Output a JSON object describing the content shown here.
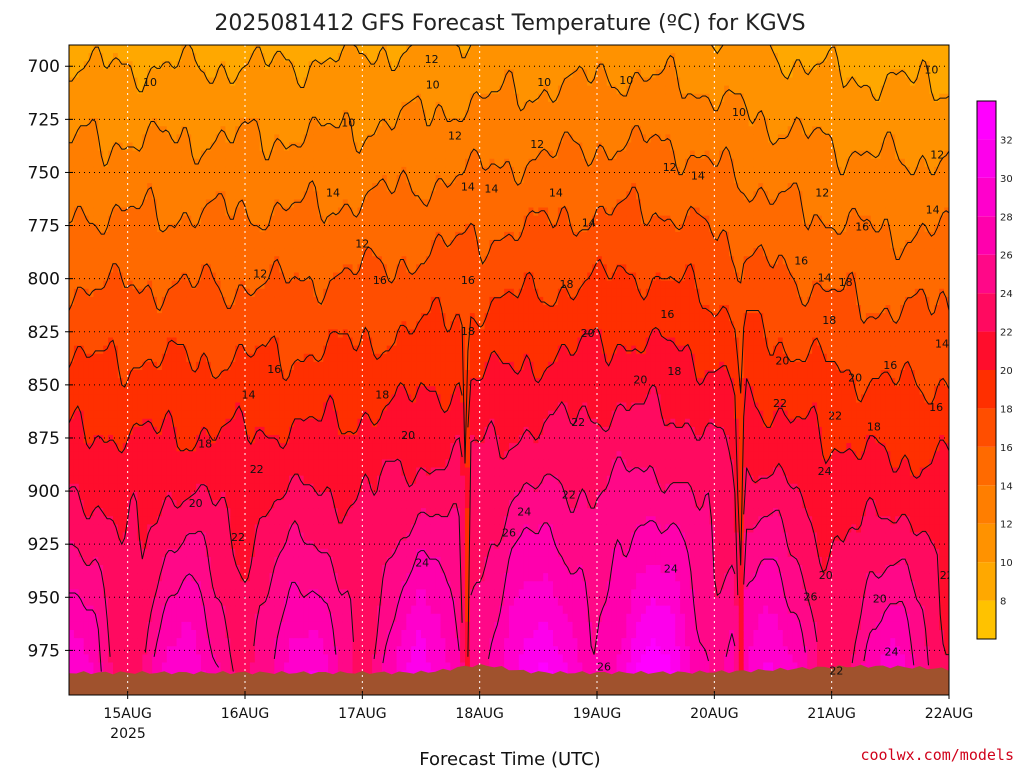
{
  "chart_data": {
    "type": "heatmap",
    "title": "2025081412 GFS Forecast Temperature (ºC) for KGVS",
    "xlabel": "Forecast Time (UTC)",
    "ylabel": "",
    "x_tick_labels": [
      "15AUG",
      "16AUG",
      "17AUG",
      "18AUG",
      "19AUG",
      "20AUG",
      "21AUG",
      "22AUG"
    ],
    "x_year_label": "2025",
    "x_range": [
      "14AUG 12Z",
      "22AUG 00Z"
    ],
    "y_tick_labels": [
      "700",
      "725",
      "750",
      "775",
      "800",
      "825",
      "850",
      "875",
      "900",
      "925",
      "950",
      "975"
    ],
    "y_range": [
      690,
      996
    ],
    "y_reversed": true,
    "grid": true,
    "colorbar": {
      "levels": [
        8,
        10,
        12,
        14,
        16,
        18,
        20,
        22,
        24,
        26,
        28,
        30,
        32
      ],
      "colors": [
        "#ffc200",
        "#ffa800",
        "#ff9200",
        "#ff7e00",
        "#ff6a00",
        "#ff4e00",
        "#ff2f00",
        "#ff0d2c",
        "#ff0a60",
        "#ff0888",
        "#ff00ad",
        "#ff00cc",
        "#fd00eb",
        "#ff00ff"
      ],
      "position": "right"
    },
    "contour_levels": [
      10,
      12,
      14,
      16,
      18,
      20,
      22,
      24,
      26
    ],
    "contour_labels": [
      {
        "t": 0.19,
        "p": 708,
        "v": "10"
      },
      {
        "t": 1.13,
        "p": 798,
        "v": "12"
      },
      {
        "t": 1.03,
        "p": 855,
        "v": "14"
      },
      {
        "t": 0.58,
        "p": 906,
        "v": "20"
      },
      {
        "t": 0.66,
        "p": 878,
        "v": "18"
      },
      {
        "t": 0.94,
        "p": 922,
        "v": "22"
      },
      {
        "t": 1.1,
        "p": 890,
        "v": "22"
      },
      {
        "t": 1.25,
        "p": 843,
        "v": "16"
      },
      {
        "t": 1.75,
        "p": 760,
        "v": "14"
      },
      {
        "t": 2.0,
        "p": 784,
        "v": "12"
      },
      {
        "t": 1.88,
        "p": 727,
        "v": "10"
      },
      {
        "t": 2.15,
        "p": 801,
        "v": "16"
      },
      {
        "t": 2.17,
        "p": 855,
        "v": "18"
      },
      {
        "t": 2.39,
        "p": 874,
        "v": "20"
      },
      {
        "t": 2.51,
        "p": 934,
        "v": "24"
      },
      {
        "t": 2.79,
        "p": 733,
        "v": "12"
      },
      {
        "t": 2.59,
        "p": 697,
        "v": "12"
      },
      {
        "t": 2.6,
        "p": 709,
        "v": "10"
      },
      {
        "t": 2.9,
        "p": 757,
        "v": "14"
      },
      {
        "t": 2.9,
        "p": 801,
        "v": "16"
      },
      {
        "t": 2.9,
        "p": 825,
        "v": "18"
      },
      {
        "t": 3.1,
        "p": 758,
        "v": "14"
      },
      {
        "t": 3.38,
        "p": 910,
        "v": "24"
      },
      {
        "t": 3.25,
        "p": 920,
        "v": "26"
      },
      {
        "t": 3.55,
        "p": 708,
        "v": "10"
      },
      {
        "t": 3.49,
        "p": 737,
        "v": "12"
      },
      {
        "t": 3.65,
        "p": 760,
        "v": "14"
      },
      {
        "t": 3.74,
        "p": 803,
        "v": "18"
      },
      {
        "t": 3.84,
        "p": 868,
        "v": "22"
      },
      {
        "t": 3.92,
        "p": 826,
        "v": "20"
      },
      {
        "t": 3.93,
        "p": 774,
        "v": "14"
      },
      {
        "t": 3.76,
        "p": 902,
        "v": "22"
      },
      {
        "t": 4.06,
        "p": 983,
        "v": "26"
      },
      {
        "t": 4.37,
        "p": 848,
        "v": "20"
      },
      {
        "t": 4.25,
        "p": 707,
        "v": "10"
      },
      {
        "t": 4.62,
        "p": 748,
        "v": "12"
      },
      {
        "t": 4.86,
        "p": 752,
        "v": "14"
      },
      {
        "t": 4.6,
        "p": 817,
        "v": "16"
      },
      {
        "t": 4.66,
        "p": 844,
        "v": "18"
      },
      {
        "t": 4.63,
        "p": 937,
        "v": "24"
      },
      {
        "t": 5.21,
        "p": 722,
        "v": "10"
      },
      {
        "t": 5.58,
        "p": 839,
        "v": "20"
      },
      {
        "t": 5.56,
        "p": 859,
        "v": "22"
      },
      {
        "t": 5.74,
        "p": 792,
        "v": "16"
      },
      {
        "t": 5.92,
        "p": 760,
        "v": "12"
      },
      {
        "t": 5.94,
        "p": 800,
        "v": "14"
      },
      {
        "t": 5.98,
        "p": 820,
        "v": "18"
      },
      {
        "t": 6.03,
        "p": 865,
        "v": "22"
      },
      {
        "t": 5.94,
        "p": 891,
        "v": "24"
      },
      {
        "t": 5.95,
        "p": 940,
        "v": "20"
      },
      {
        "t": 5.82,
        "p": 950,
        "v": "26"
      },
      {
        "t": 6.04,
        "p": 985,
        "v": "22"
      },
      {
        "t": 6.12,
        "p": 802,
        "v": "18"
      },
      {
        "t": 6.2,
        "p": 847,
        "v": "20"
      },
      {
        "t": 6.26,
        "p": 776,
        "v": "16"
      },
      {
        "t": 6.36,
        "p": 870,
        "v": "18"
      },
      {
        "t": 6.5,
        "p": 841,
        "v": "16"
      },
      {
        "t": 6.51,
        "p": 976,
        "v": "24"
      },
      {
        "t": 6.41,
        "p": 951,
        "v": "20"
      },
      {
        "t": 6.85,
        "p": 702,
        "v": "10"
      },
      {
        "t": 6.9,
        "p": 742,
        "v": "12"
      },
      {
        "t": 6.86,
        "p": 768,
        "v": "14"
      },
      {
        "t": 6.94,
        "p": 831,
        "v": "14"
      },
      {
        "t": 6.89,
        "p": 861,
        "v": "16"
      },
      {
        "t": 6.98,
        "p": 940,
        "v": "22"
      },
      {
        "t": 7.15,
        "p": 884,
        "v": "18"
      },
      {
        "t": 7.36,
        "p": 954,
        "v": "20"
      }
    ]
  },
  "credit": "coolwx.com/models"
}
